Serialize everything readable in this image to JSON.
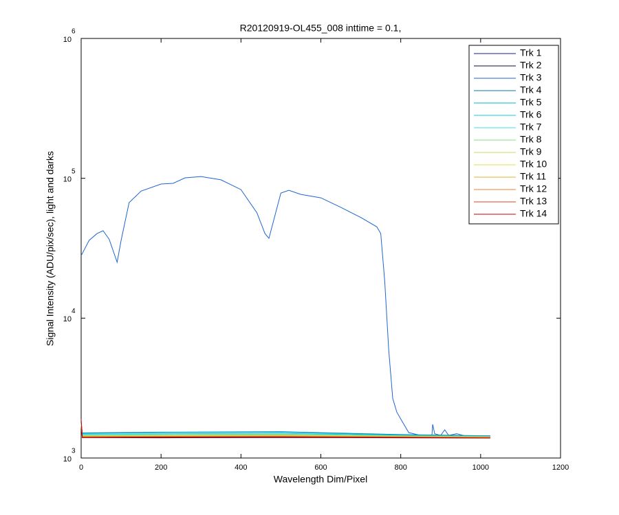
{
  "chart_data": {
    "type": "line",
    "title": "R20120919-OL455_008 inttime = 0.1,",
    "x_label": "Wavelength Dim/Pixel",
    "y_label": "Signal Intensity (ADU/pix/sec), light and darks",
    "xlim": [
      0,
      1200
    ],
    "xticks": [
      0,
      200,
      400,
      600,
      800,
      1000,
      1200
    ],
    "ylim": [
      1000,
      1000000
    ],
    "y_scale": "log",
    "yticks": [
      {
        "value": 1000,
        "label": "10",
        "exponent": "3"
      },
      {
        "value": 10000,
        "label": "10",
        "exponent": "4"
      },
      {
        "value": 100000,
        "label": "10",
        "exponent": "5"
      },
      {
        "value": 1000000,
        "label": "10",
        "exponent": "6"
      }
    ],
    "legend": "upper right",
    "series": [
      {
        "name": "Trk 1",
        "color": "#1a1a8c",
        "x": [
          0,
          3,
          200,
          500,
          800,
          1024
        ],
        "values": [
          1700,
          1440,
          1445,
          1450,
          1430,
          1410
        ]
      },
      {
        "name": "Trk 2",
        "color": "#0a0a40",
        "x": [
          0,
          3,
          200,
          500,
          800,
          1024
        ],
        "values": [
          1750,
          1400,
          1395,
          1400,
          1395,
          1390
        ]
      },
      {
        "name": "Trk 3",
        "color": "#1c64d0",
        "x": [
          0,
          20,
          40,
          55,
          70,
          90,
          100,
          120,
          150,
          200,
          230,
          260,
          300,
          350,
          400,
          440,
          460,
          470,
          480,
          500,
          520,
          550,
          600,
          650,
          700,
          740,
          750,
          760,
          770,
          780,
          790,
          800,
          820,
          850,
          878,
          880,
          885,
          900,
          910,
          920,
          940,
          960,
          1000,
          1024
        ],
        "values": [
          28000,
          36000,
          40300,
          42200,
          36700,
          25100,
          36000,
          67000,
          81000,
          91000,
          92000,
          100700,
          103000,
          97500,
          83000,
          56600,
          40300,
          37200,
          47700,
          78500,
          82000,
          76700,
          72500,
          62000,
          52500,
          45000,
          40300,
          18300,
          5900,
          2670,
          2130,
          1900,
          1520,
          1450,
          1450,
          1740,
          1490,
          1450,
          1590,
          1450,
          1490,
          1440,
          1440,
          1440
        ]
      },
      {
        "name": "Trk 4",
        "color": "#0078a8",
        "x": [
          0,
          3,
          200,
          500,
          800,
          1024
        ],
        "values": [
          1800,
          1510,
          1530,
          1540,
          1470,
          1440
        ]
      },
      {
        "name": "Trk 5",
        "color": "#00b4d8",
        "x": [
          0,
          3,
          200,
          500,
          800,
          1024
        ],
        "values": [
          1780,
          1500,
          1520,
          1530,
          1460,
          1430
        ]
      },
      {
        "name": "Trk 6",
        "color": "#10c8e0",
        "x": [
          0,
          3,
          200,
          500,
          800,
          1024
        ],
        "values": [
          1760,
          1480,
          1490,
          1500,
          1450,
          1430
        ]
      },
      {
        "name": "Trk 7",
        "color": "#40e0e0",
        "x": [
          0,
          3,
          200,
          500,
          800,
          1024
        ],
        "values": [
          1740,
          1460,
          1470,
          1480,
          1440,
          1420
        ]
      },
      {
        "name": "Trk 8",
        "color": "#80e080",
        "x": [
          0,
          3,
          200,
          500,
          800,
          1024
        ],
        "values": [
          1730,
          1450,
          1460,
          1470,
          1440,
          1420
        ]
      },
      {
        "name": "Trk 9",
        "color": "#c0e060",
        "x": [
          0,
          3,
          200,
          500,
          800,
          1024
        ],
        "values": [
          1720,
          1440,
          1450,
          1460,
          1430,
          1415
        ]
      },
      {
        "name": "Trk 10",
        "color": "#e0e040",
        "x": [
          0,
          3,
          200,
          500,
          800,
          1024
        ],
        "values": [
          1710,
          1430,
          1440,
          1450,
          1425,
          1410
        ]
      },
      {
        "name": "Trk 11",
        "color": "#e0b030",
        "x": [
          0,
          3,
          200,
          500,
          800,
          1024
        ],
        "values": [
          1700,
          1425,
          1430,
          1440,
          1420,
          1405
        ]
      },
      {
        "name": "Trk 12",
        "color": "#f08030",
        "x": [
          0,
          3,
          200,
          500,
          800,
          1024
        ],
        "values": [
          1690,
          1420,
          1425,
          1430,
          1415,
          1400
        ]
      },
      {
        "name": "Trk 13",
        "color": "#e04020",
        "x": [
          0,
          3,
          200,
          500,
          800,
          1024
        ],
        "values": [
          1680,
          1410,
          1415,
          1420,
          1405,
          1395
        ]
      },
      {
        "name": "Trk 14",
        "color": "#c00000",
        "x": [
          0,
          3,
          200,
          500,
          800,
          1024
        ],
        "values": [
          1900,
          1400,
          1405,
          1410,
          1400,
          1390
        ]
      }
    ]
  }
}
